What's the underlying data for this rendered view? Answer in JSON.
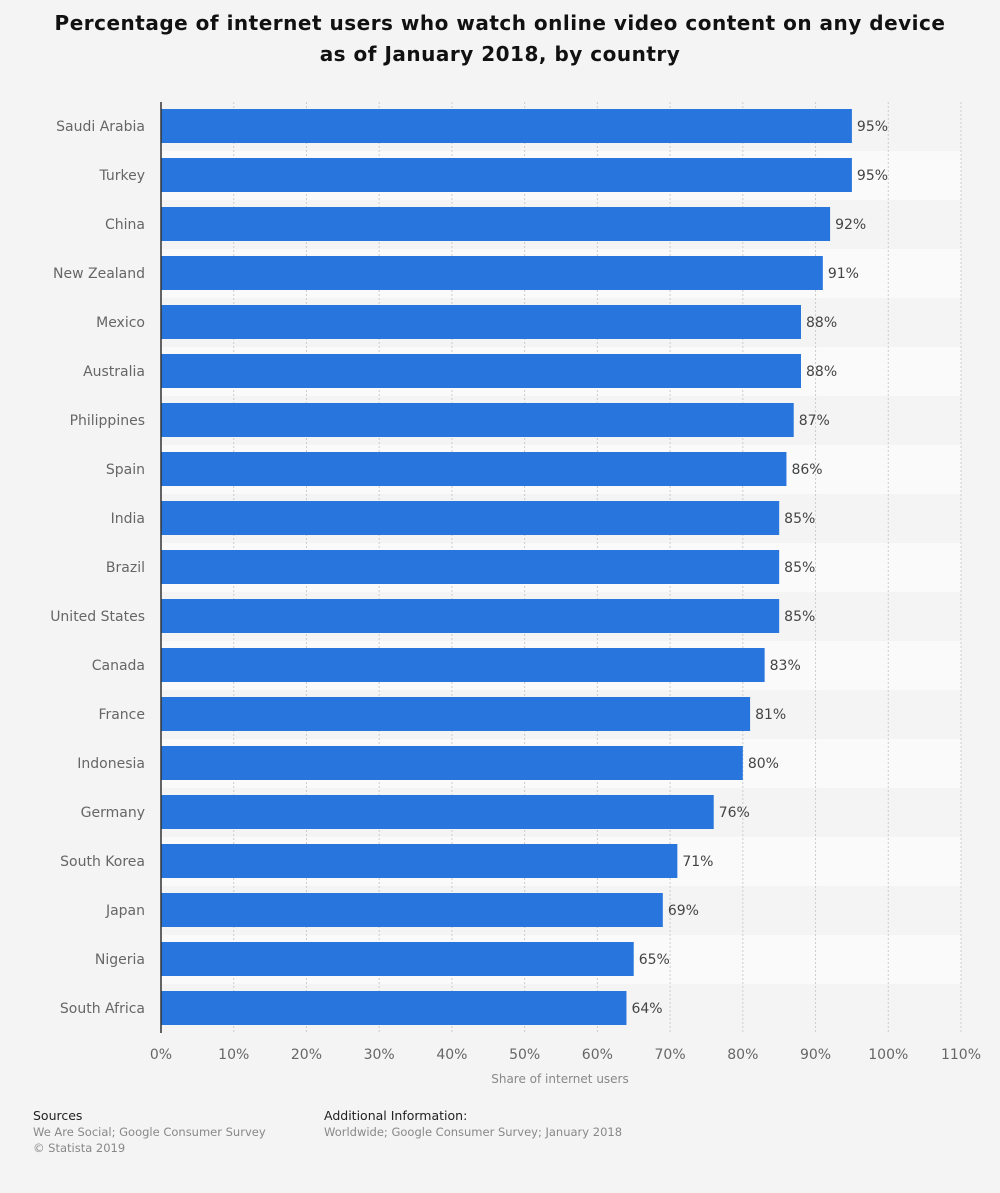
{
  "chart_data": {
    "type": "bar",
    "orientation": "horizontal",
    "title": "Percentage of internet users who watch online video content on any device as of January 2018, by country",
    "xlabel": "Share of internet users",
    "ylabel": "",
    "xlim": [
      0,
      110
    ],
    "ticks": [
      "0%",
      "10%",
      "20%",
      "30%",
      "40%",
      "50%",
      "60%",
      "70%",
      "80%",
      "90%",
      "100%",
      "110%"
    ],
    "tick_values": [
      0,
      10,
      20,
      30,
      40,
      50,
      60,
      70,
      80,
      90,
      100,
      110
    ],
    "grid": true,
    "categories": [
      "Saudi Arabia",
      "Turkey",
      "China",
      "New Zealand",
      "Mexico",
      "Australia",
      "Philippines",
      "Spain",
      "India",
      "Brazil",
      "United States",
      "Canada",
      "France",
      "Indonesia",
      "Germany",
      "South Korea",
      "Japan",
      "Nigeria",
      "South Africa"
    ],
    "values": [
      95,
      95,
      92,
      91,
      88,
      88,
      87,
      86,
      85,
      85,
      85,
      83,
      81,
      80,
      76,
      71,
      69,
      65,
      64
    ],
    "data_label_suffix": "%",
    "bar_color": "#2876dd"
  },
  "footer": {
    "sources_label": "Sources",
    "sources": "We Are Social; Google Consumer Survey",
    "copyright": "© Statista 2019",
    "additional_label": "Additional Information:",
    "additional": "Worldwide; Google Consumer Survey; January 2018"
  }
}
